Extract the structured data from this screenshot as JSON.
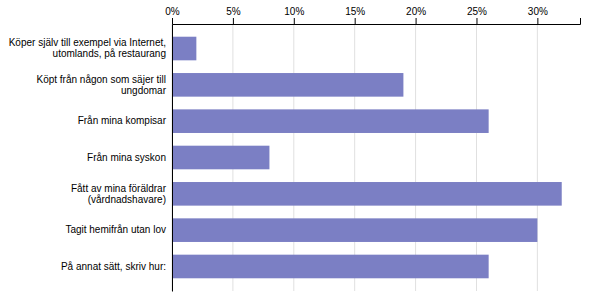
{
  "chart_data": {
    "type": "bar",
    "orientation": "horizontal",
    "categories": [
      "Köper själv till exempel via Internet,\nutomlands, på restaurang",
      "Köpt från någon som säjer till\nungdomar",
      "Från mina kompisar",
      "Från mina syskon",
      "Fått av mina föräldrar\n(vårdnadshavare)",
      "Tagit hemifrån utan lov",
      "På annat sätt, skriv hur:"
    ],
    "values": [
      0.02,
      0.19,
      0.26,
      0.08,
      0.32,
      0.3,
      0.26
    ],
    "color": "#7b7fc4",
    "xlim": [
      0,
      0.335
    ],
    "xticks": [
      {
        "value": 0.0,
        "label": "0%"
      },
      {
        "value": 0.05,
        "label": "5%"
      },
      {
        "value": 0.1,
        "label": "10%"
      },
      {
        "value": 0.15,
        "label": "15%"
      },
      {
        "value": 0.2,
        "label": "20%"
      },
      {
        "value": 0.25,
        "label": "25%"
      },
      {
        "value": 0.3,
        "label": "30%"
      }
    ],
    "grid": true
  }
}
